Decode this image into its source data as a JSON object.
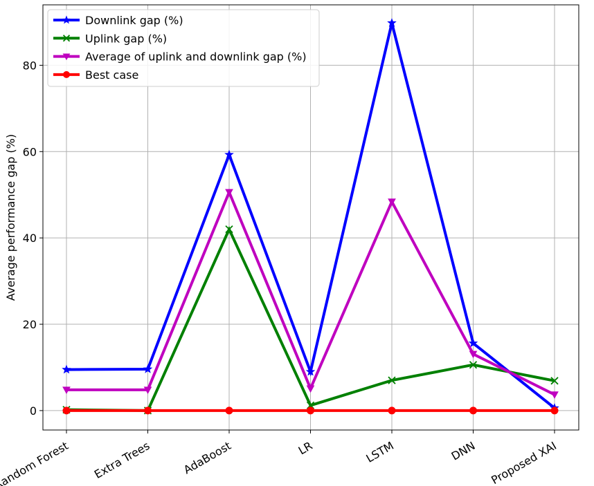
{
  "chart_data": {
    "type": "line",
    "categories": [
      "Random Forest",
      "Extra Trees",
      "AdaBoost",
      "LR",
      "LSTM",
      "DNN",
      "Proposed XAI"
    ],
    "xlabel": "",
    "ylabel": "Average performance gap (%)",
    "ylim": [
      -4.5,
      94
    ],
    "yticks": [
      0,
      20,
      40,
      60,
      80
    ],
    "grid": true,
    "legend_position": "top-left",
    "series": [
      {
        "name": "Downlink gap (%)",
        "color": "#0000ff",
        "marker": "star",
        "values": [
          9.5,
          9.6,
          59.3,
          9.0,
          89.8,
          15.6,
          0.6
        ]
      },
      {
        "name": "Uplink gap (%)",
        "color": "#008000",
        "marker": "x",
        "values": [
          0.2,
          0.0,
          42.0,
          1.2,
          7.0,
          10.6,
          6.9
        ]
      },
      {
        "name": "Average of uplink and downlink gap (%)",
        "color": "#bf00bf",
        "marker": "triangle-down",
        "values": [
          4.8,
          4.8,
          50.6,
          5.1,
          48.4,
          13.1,
          3.7
        ]
      },
      {
        "name": "Best case",
        "color": "#ff0000",
        "marker": "circle",
        "values": [
          0,
          0,
          0,
          0,
          0,
          0,
          0
        ]
      }
    ]
  }
}
